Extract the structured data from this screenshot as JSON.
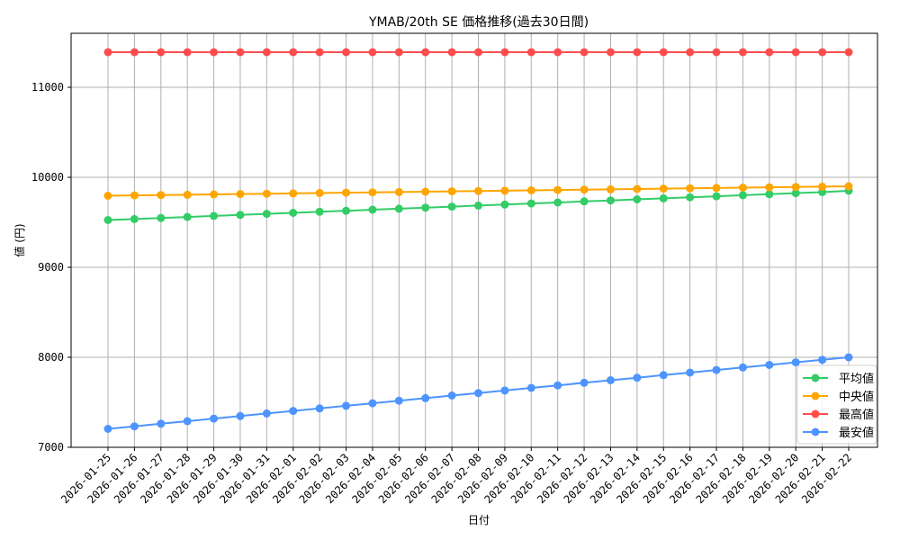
{
  "chart_data": {
    "type": "line",
    "title": "YMAB/20th SE 価格推移(過去30日間)",
    "xlabel": "日付",
    "ylabel": "値 (円)",
    "ylim": [
      7000,
      11600
    ],
    "yticks": [
      7000,
      8000,
      9000,
      10000,
      11000
    ],
    "grid": true,
    "legend_position": "lower right",
    "categories": [
      "2026-01-25",
      "2026-01-26",
      "2026-01-27",
      "2026-01-28",
      "2026-01-29",
      "2026-01-30",
      "2026-01-31",
      "2026-02-01",
      "2026-02-02",
      "2026-02-03",
      "2026-02-04",
      "2026-02-05",
      "2026-02-06",
      "2026-02-07",
      "2026-02-08",
      "2026-02-09",
      "2026-02-10",
      "2026-02-11",
      "2026-02-12",
      "2026-02-13",
      "2026-02-14",
      "2026-02-15",
      "2026-02-16",
      "2026-02-17",
      "2026-02-18",
      "2026-02-19",
      "2026-02-20",
      "2026-02-21",
      "2026-02-22"
    ],
    "series": [
      {
        "name": "平均値",
        "color": "#33cc66",
        "values": [
          9525,
          9536,
          9548,
          9559,
          9571,
          9582,
          9594,
          9605,
          9617,
          9628,
          9640,
          9651,
          9663,
          9674,
          9686,
          9697,
          9709,
          9720,
          9732,
          9743,
          9755,
          9766,
          9778,
          9789,
          9801,
          9812,
          9824,
          9835,
          9850
        ]
      },
      {
        "name": "中央値",
        "color": "#ffa500",
        "values": [
          9795,
          9799,
          9803,
          9806,
          9810,
          9814,
          9818,
          9821,
          9825,
          9829,
          9833,
          9836,
          9840,
          9844,
          9848,
          9851,
          9855,
          9859,
          9863,
          9866,
          9870,
          9874,
          9878,
          9881,
          9885,
          9889,
          9893,
          9896,
          9900
        ]
      },
      {
        "name": "最高値",
        "color": "#ff4d4d",
        "values": [
          11390,
          11390,
          11390,
          11390,
          11390,
          11390,
          11390,
          11390,
          11390,
          11390,
          11390,
          11390,
          11390,
          11390,
          11390,
          11390,
          11390,
          11390,
          11390,
          11390,
          11390,
          11390,
          11390,
          11390,
          11390,
          11390,
          11390,
          11390,
          11390
        ]
      },
      {
        "name": "最安値",
        "color": "#4d94ff",
        "values": [
          7205,
          7233,
          7262,
          7290,
          7319,
          7347,
          7376,
          7404,
          7432,
          7461,
          7489,
          7518,
          7546,
          7575,
          7603,
          7631,
          7660,
          7688,
          7717,
          7745,
          7773,
          7802,
          7830,
          7859,
          7887,
          7915,
          7944,
          7972,
          8000
        ]
      }
    ]
  }
}
